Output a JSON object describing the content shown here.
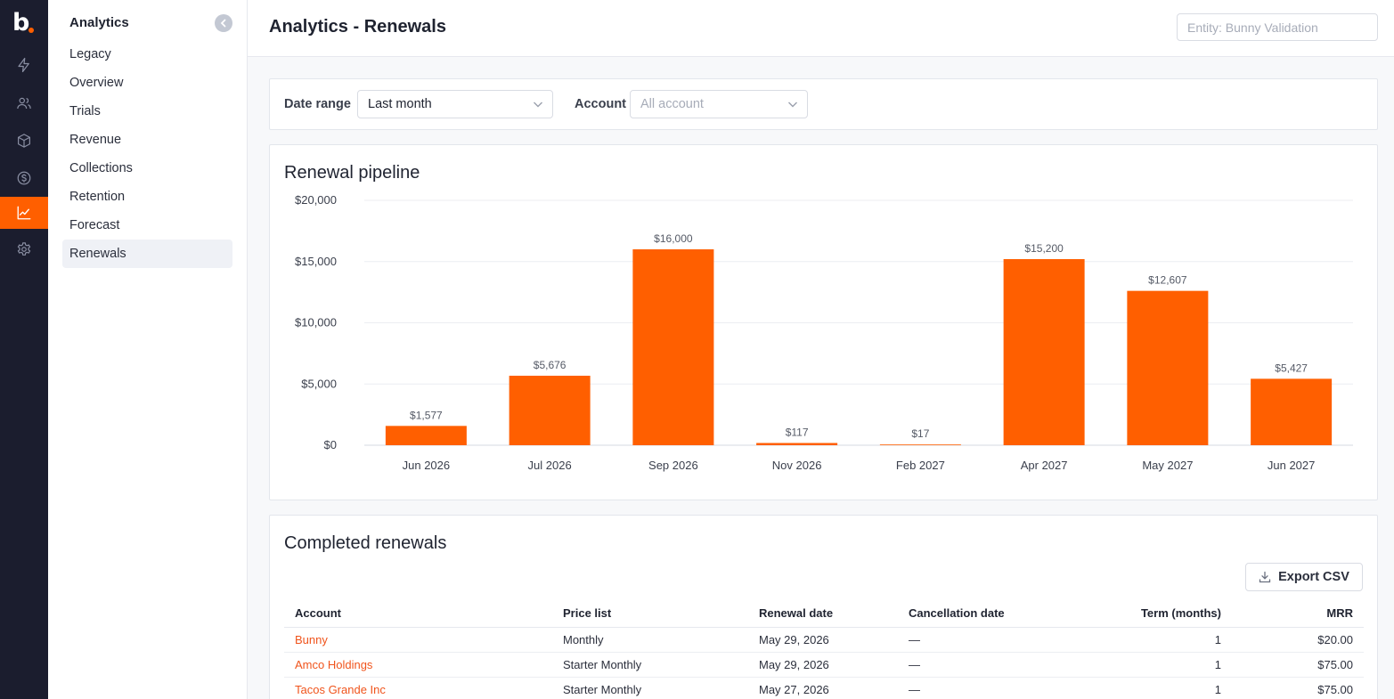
{
  "app": {
    "logo_letter": "b"
  },
  "rail": {
    "items": [
      {
        "icon": "bolt-icon"
      },
      {
        "icon": "users-icon"
      },
      {
        "icon": "box-icon"
      },
      {
        "icon": "dollar-icon"
      },
      {
        "icon": "chart-icon",
        "active": true
      },
      {
        "icon": "gear-icon"
      }
    ]
  },
  "sidebar": {
    "heading": "Analytics",
    "items": [
      {
        "label": "Legacy"
      },
      {
        "label": "Overview"
      },
      {
        "label": "Trials"
      },
      {
        "label": "Revenue"
      },
      {
        "label": "Collections"
      },
      {
        "label": "Retention"
      },
      {
        "label": "Forecast"
      },
      {
        "label": "Renewals",
        "active": true
      }
    ]
  },
  "header": {
    "title": "Analytics - Renewals",
    "entity_placeholder": "Entity: Bunny Validation"
  },
  "filters": {
    "date_range_label": "Date range",
    "date_range_value": "Last month",
    "account_label": "Account",
    "account_placeholder": "All account"
  },
  "chart_section": {
    "title": "Renewal pipeline"
  },
  "chart_data": {
    "type": "bar",
    "title": "",
    "xlabel": "",
    "ylabel": "",
    "categories": [
      "Jun 2026",
      "Jul 2026",
      "Sep 2026",
      "Nov 2026",
      "Feb 2027",
      "Apr 2027",
      "May 2027",
      "Jun 2027"
    ],
    "values": [
      1577,
      5676,
      16000,
      117,
      17,
      15200,
      12607,
      5427
    ],
    "data_labels": [
      "$1,577",
      "$5,676",
      "$16,000",
      "$117",
      "$17",
      "$15,200",
      "$12,607",
      "$5,427"
    ],
    "y_ticks": [
      0,
      5000,
      10000,
      15000,
      20000
    ],
    "y_tick_labels": [
      "$0",
      "$5,000",
      "$10,000",
      "$15,000",
      "$20,000"
    ],
    "ylim": [
      0,
      20000
    ],
    "grid": true,
    "legend": "none",
    "bar_color": "#ff5f00"
  },
  "renewals": {
    "title": "Completed renewals",
    "export_label": "Export CSV",
    "columns": [
      "Account",
      "Price list",
      "Renewal date",
      "Cancellation date",
      "Term (months)",
      "MRR"
    ],
    "rows": [
      {
        "account": "Bunny",
        "price_list": "Monthly",
        "renewal_date": "May 29, 2026",
        "cancellation_date": "—",
        "term": "1",
        "mrr": "$20.00"
      },
      {
        "account": "Amco Holdings",
        "price_list": "Starter Monthly",
        "renewal_date": "May 29, 2026",
        "cancellation_date": "—",
        "term": "1",
        "mrr": "$75.00"
      },
      {
        "account": "Tacos Grande Inc",
        "price_list": "Starter Monthly",
        "renewal_date": "May 27, 2026",
        "cancellation_date": "—",
        "term": "1",
        "mrr": "$75.00"
      }
    ]
  },
  "colors": {
    "accent": "#ff5f00",
    "rail_bg": "#1b1d2e",
    "link": "#f0541c"
  }
}
